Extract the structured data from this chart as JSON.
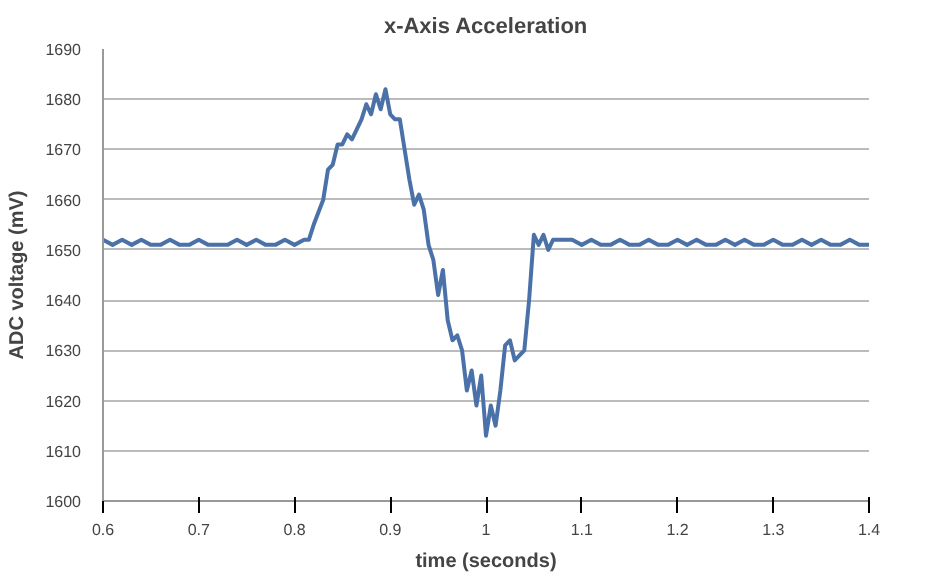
{
  "chart_data": {
    "type": "line",
    "title": "x-Axis Acceleration",
    "xlabel": "time (seconds)",
    "ylabel": "ADC voltage (mV)",
    "xlim": [
      0.6,
      1.4
    ],
    "ylim": [
      1600,
      1690
    ],
    "xticks": [
      0.6,
      0.7,
      0.8,
      0.9,
      1,
      1.1,
      1.2,
      1.3,
      1.4
    ],
    "yticks": [
      1600,
      1610,
      1620,
      1630,
      1640,
      1650,
      1660,
      1670,
      1680,
      1690
    ],
    "grid": "y",
    "series": [
      {
        "color": "#4a72a8",
        "x": [
          0.6,
          0.61,
          0.62,
          0.63,
          0.64,
          0.65,
          0.66,
          0.67,
          0.68,
          0.69,
          0.7,
          0.71,
          0.72,
          0.73,
          0.74,
          0.75,
          0.76,
          0.77,
          0.78,
          0.79,
          0.8,
          0.81,
          0.815,
          0.82,
          0.83,
          0.835,
          0.84,
          0.845,
          0.85,
          0.855,
          0.86,
          0.865,
          0.87,
          0.875,
          0.88,
          0.885,
          0.89,
          0.895,
          0.9,
          0.905,
          0.91,
          0.915,
          0.92,
          0.925,
          0.93,
          0.935,
          0.94,
          0.945,
          0.95,
          0.955,
          0.96,
          0.965,
          0.97,
          0.975,
          0.98,
          0.985,
          0.99,
          0.995,
          1.0,
          1.005,
          1.01,
          1.015,
          1.02,
          1.025,
          1.03,
          1.035,
          1.04,
          1.045,
          1.05,
          1.055,
          1.06,
          1.065,
          1.07,
          1.08,
          1.09,
          1.1,
          1.11,
          1.12,
          1.13,
          1.14,
          1.15,
          1.16,
          1.17,
          1.18,
          1.19,
          1.2,
          1.21,
          1.22,
          1.23,
          1.24,
          1.25,
          1.26,
          1.27,
          1.28,
          1.29,
          1.3,
          1.31,
          1.32,
          1.33,
          1.34,
          1.35,
          1.36,
          1.37,
          1.38,
          1.39,
          1.4
        ],
        "values": [
          1652,
          1651,
          1652,
          1651,
          1652,
          1651,
          1651,
          1652,
          1651,
          1651,
          1652,
          1651,
          1651,
          1651,
          1652,
          1651,
          1652,
          1651,
          1651,
          1652,
          1651,
          1652,
          1652,
          1655,
          1660,
          1666,
          1667,
          1671,
          1671,
          1673,
          1672,
          1674,
          1676,
          1679,
          1677,
          1681,
          1678,
          1682,
          1677,
          1676,
          1676,
          1670,
          1664,
          1659,
          1661,
          1658,
          1651,
          1648,
          1641,
          1646,
          1636,
          1632,
          1633,
          1630,
          1622,
          1626,
          1619,
          1625,
          1613,
          1619,
          1615,
          1622,
          1631,
          1632,
          1628,
          1629,
          1630,
          1640,
          1653,
          1651,
          1653,
          1650,
          1652,
          1652,
          1652,
          1651,
          1652,
          1651,
          1651,
          1652,
          1651,
          1651,
          1652,
          1651,
          1651,
          1652,
          1651,
          1652,
          1651,
          1651,
          1652,
          1651,
          1652,
          1651,
          1651,
          1652,
          1651,
          1651,
          1652,
          1651,
          1652,
          1651,
          1651,
          1652,
          1651,
          1651
        ]
      }
    ]
  }
}
